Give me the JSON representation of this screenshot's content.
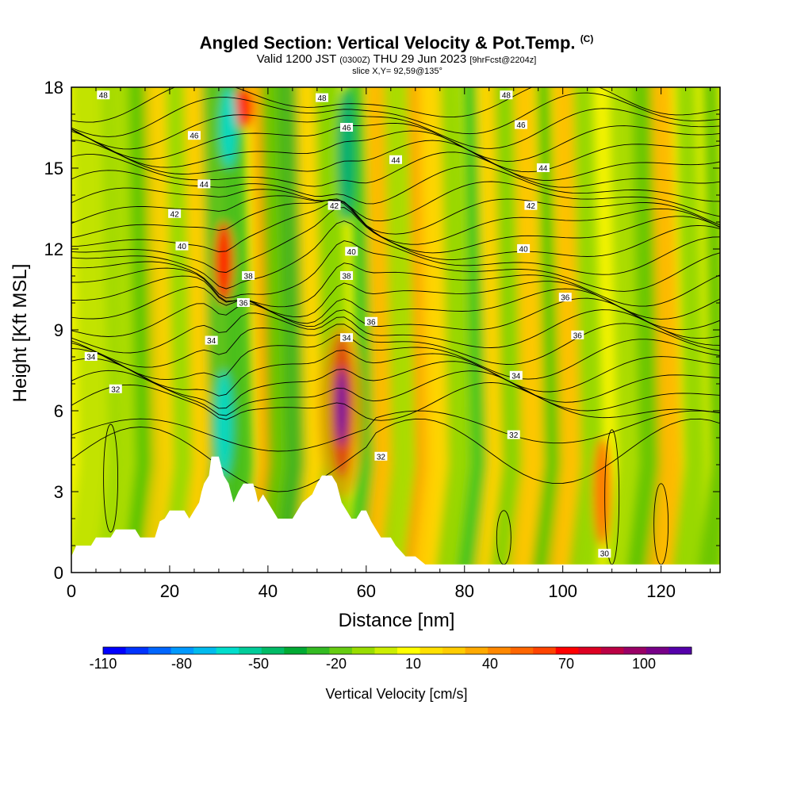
{
  "header": {
    "title": "Angled Section: Vertical Velocity & Pot.Temp.",
    "copyright": "(C)",
    "valid_prefix": "Valid 1200 JST",
    "valid_utc": "(0300Z)",
    "valid_date": "THU 29 Jun 2023",
    "forecast": "[9hrFcst@2204z]",
    "slice": "slice X,Y= 92,59@135°"
  },
  "colorbar": {
    "title": "Vertical Velocity [cm/s]",
    "tick_labels": [
      "-110",
      "-80",
      "-50",
      "-20",
      "10",
      "40",
      "70",
      "100"
    ],
    "colors": [
      "#0000ff",
      "#0033ff",
      "#0066ff",
      "#0099ff",
      "#00bbee",
      "#00ddcc",
      "#00cc99",
      "#00bb66",
      "#00aa33",
      "#33bb22",
      "#66cc11",
      "#99dd00",
      "#ccee00",
      "#ffff00",
      "#ffe000",
      "#ffcc00",
      "#ffaa00",
      "#ff8800",
      "#ff6600",
      "#ff4400",
      "#ff0000",
      "#dd0022",
      "#bb0044",
      "#990066",
      "#770088",
      "#5500aa"
    ]
  },
  "chart_data": {
    "type": "heatmap",
    "xlabel": "Distance [nm]",
    "ylabel": "Height [Kft MSL]",
    "xlim": [
      0,
      132
    ],
    "ylim": [
      0,
      18
    ],
    "x_ticks": [
      0,
      20,
      40,
      60,
      80,
      100,
      120
    ],
    "y_ticks": [
      0,
      3,
      6,
      9,
      12,
      15,
      18
    ],
    "contour_variable": "Potential temperature",
    "contour_levels": [
      30,
      32,
      34,
      36,
      38,
      40,
      42,
      44,
      46,
      48
    ],
    "contour_labels": [
      {
        "value": "48",
        "x": 6.5,
        "y": 17.7
      },
      {
        "value": "48",
        "x": 51,
        "y": 17.6
      },
      {
        "value": "48",
        "x": 88.5,
        "y": 17.7
      },
      {
        "value": "46",
        "x": 25,
        "y": 16.2
      },
      {
        "value": "46",
        "x": 56,
        "y": 16.5
      },
      {
        "value": "46",
        "x": 91.5,
        "y": 16.6
      },
      {
        "value": "44",
        "x": 27,
        "y": 14.4
      },
      {
        "value": "44",
        "x": 66,
        "y": 15.3
      },
      {
        "value": "44",
        "x": 96,
        "y": 15.0
      },
      {
        "value": "42",
        "x": 21,
        "y": 13.3
      },
      {
        "value": "42",
        "x": 53.5,
        "y": 13.6
      },
      {
        "value": "42",
        "x": 93.5,
        "y": 13.6
      },
      {
        "value": "40",
        "x": 22.5,
        "y": 12.1
      },
      {
        "value": "40",
        "x": 57,
        "y": 11.9
      },
      {
        "value": "40",
        "x": 92,
        "y": 12.0
      },
      {
        "value": "38",
        "x": 36,
        "y": 11.0
      },
      {
        "value": "38",
        "x": 56,
        "y": 11.0
      },
      {
        "value": "36",
        "x": 35,
        "y": 10.0
      },
      {
        "value": "36",
        "x": 61,
        "y": 9.3
      },
      {
        "value": "36",
        "x": 100.5,
        "y": 10.2
      },
      {
        "value": "36",
        "x": 103,
        "y": 8.8
      },
      {
        "value": "34",
        "x": 28.5,
        "y": 8.6
      },
      {
        "value": "34",
        "x": 56,
        "y": 8.7
      },
      {
        "value": "34",
        "x": 90.5,
        "y": 7.3
      },
      {
        "value": "34",
        "x": 4,
        "y": 8.0
      },
      {
        "value": "32",
        "x": 9,
        "y": 6.8
      },
      {
        "value": "32",
        "x": 63,
        "y": 4.3
      },
      {
        "value": "32",
        "x": 90,
        "y": 5.1
      },
      {
        "value": "30",
        "x": 108.5,
        "y": 0.7
      }
    ],
    "vertical_velocity_features": [
      {
        "x": 55,
        "height_min": 3.5,
        "height_max": 8.8,
        "value": 100
      },
      {
        "x": 31,
        "height_min": 10,
        "height_max": 13,
        "value": 70
      },
      {
        "x": 35,
        "height_min": 16.5,
        "height_max": 18,
        "value": 70
      },
      {
        "x": 108,
        "height_min": 1,
        "height_max": 5,
        "value": 50
      },
      {
        "x": 31,
        "height_min": 3.5,
        "height_max": 7.5,
        "value": -50
      },
      {
        "x": 32,
        "height_min": 15,
        "height_max": 18,
        "value": -50
      },
      {
        "x": 56,
        "height_min": 13,
        "height_max": 18,
        "value": -40
      }
    ],
    "terrain": [
      [
        0,
        0.6
      ],
      [
        1,
        1
      ],
      [
        4,
        1
      ],
      [
        5,
        1.3
      ],
      [
        8,
        1.3
      ],
      [
        9,
        1.6
      ],
      [
        13,
        1.6
      ],
      [
        14,
        1.3
      ],
      [
        17,
        1.3
      ],
      [
        18,
        1.9
      ],
      [
        19,
        2
      ],
      [
        20,
        2.3
      ],
      [
        23,
        2.3
      ],
      [
        24,
        2
      ],
      [
        25,
        2.3
      ],
      [
        26,
        2.6
      ],
      [
        26.5,
        3
      ],
      [
        27,
        3.3
      ],
      [
        28,
        3.6
      ],
      [
        28.5,
        4.3
      ],
      [
        30,
        4.3
      ],
      [
        31,
        3.6
      ],
      [
        32,
        3.3
      ],
      [
        33,
        2.6
      ],
      [
        34,
        3.0
      ],
      [
        35,
        3.3
      ],
      [
        37,
        3.3
      ],
      [
        37.5,
        3.0
      ],
      [
        38,
        2.6
      ],
      [
        39,
        2.9
      ],
      [
        40,
        2.6
      ],
      [
        41,
        2.3
      ],
      [
        42,
        2.0
      ],
      [
        45,
        2.0
      ],
      [
        46,
        2.3
      ],
      [
        47,
        2.6
      ],
      [
        49,
        2.9
      ],
      [
        50,
        3.3
      ],
      [
        51,
        3.6
      ],
      [
        53,
        3.6
      ],
      [
        54,
        3.3
      ],
      [
        55,
        2.6
      ],
      [
        56,
        2.3
      ],
      [
        57,
        2.0
      ],
      [
        58,
        2.0
      ],
      [
        59,
        2.3
      ],
      [
        60,
        2.3
      ],
      [
        61,
        1.9
      ],
      [
        62,
        1.6
      ],
      [
        63,
        1.3
      ],
      [
        65,
        1.3
      ],
      [
        66,
        1.0
      ],
      [
        68,
        0.6
      ],
      [
        70,
        0.6
      ],
      [
        72,
        0.3
      ],
      [
        132,
        0.3
      ]
    ]
  }
}
